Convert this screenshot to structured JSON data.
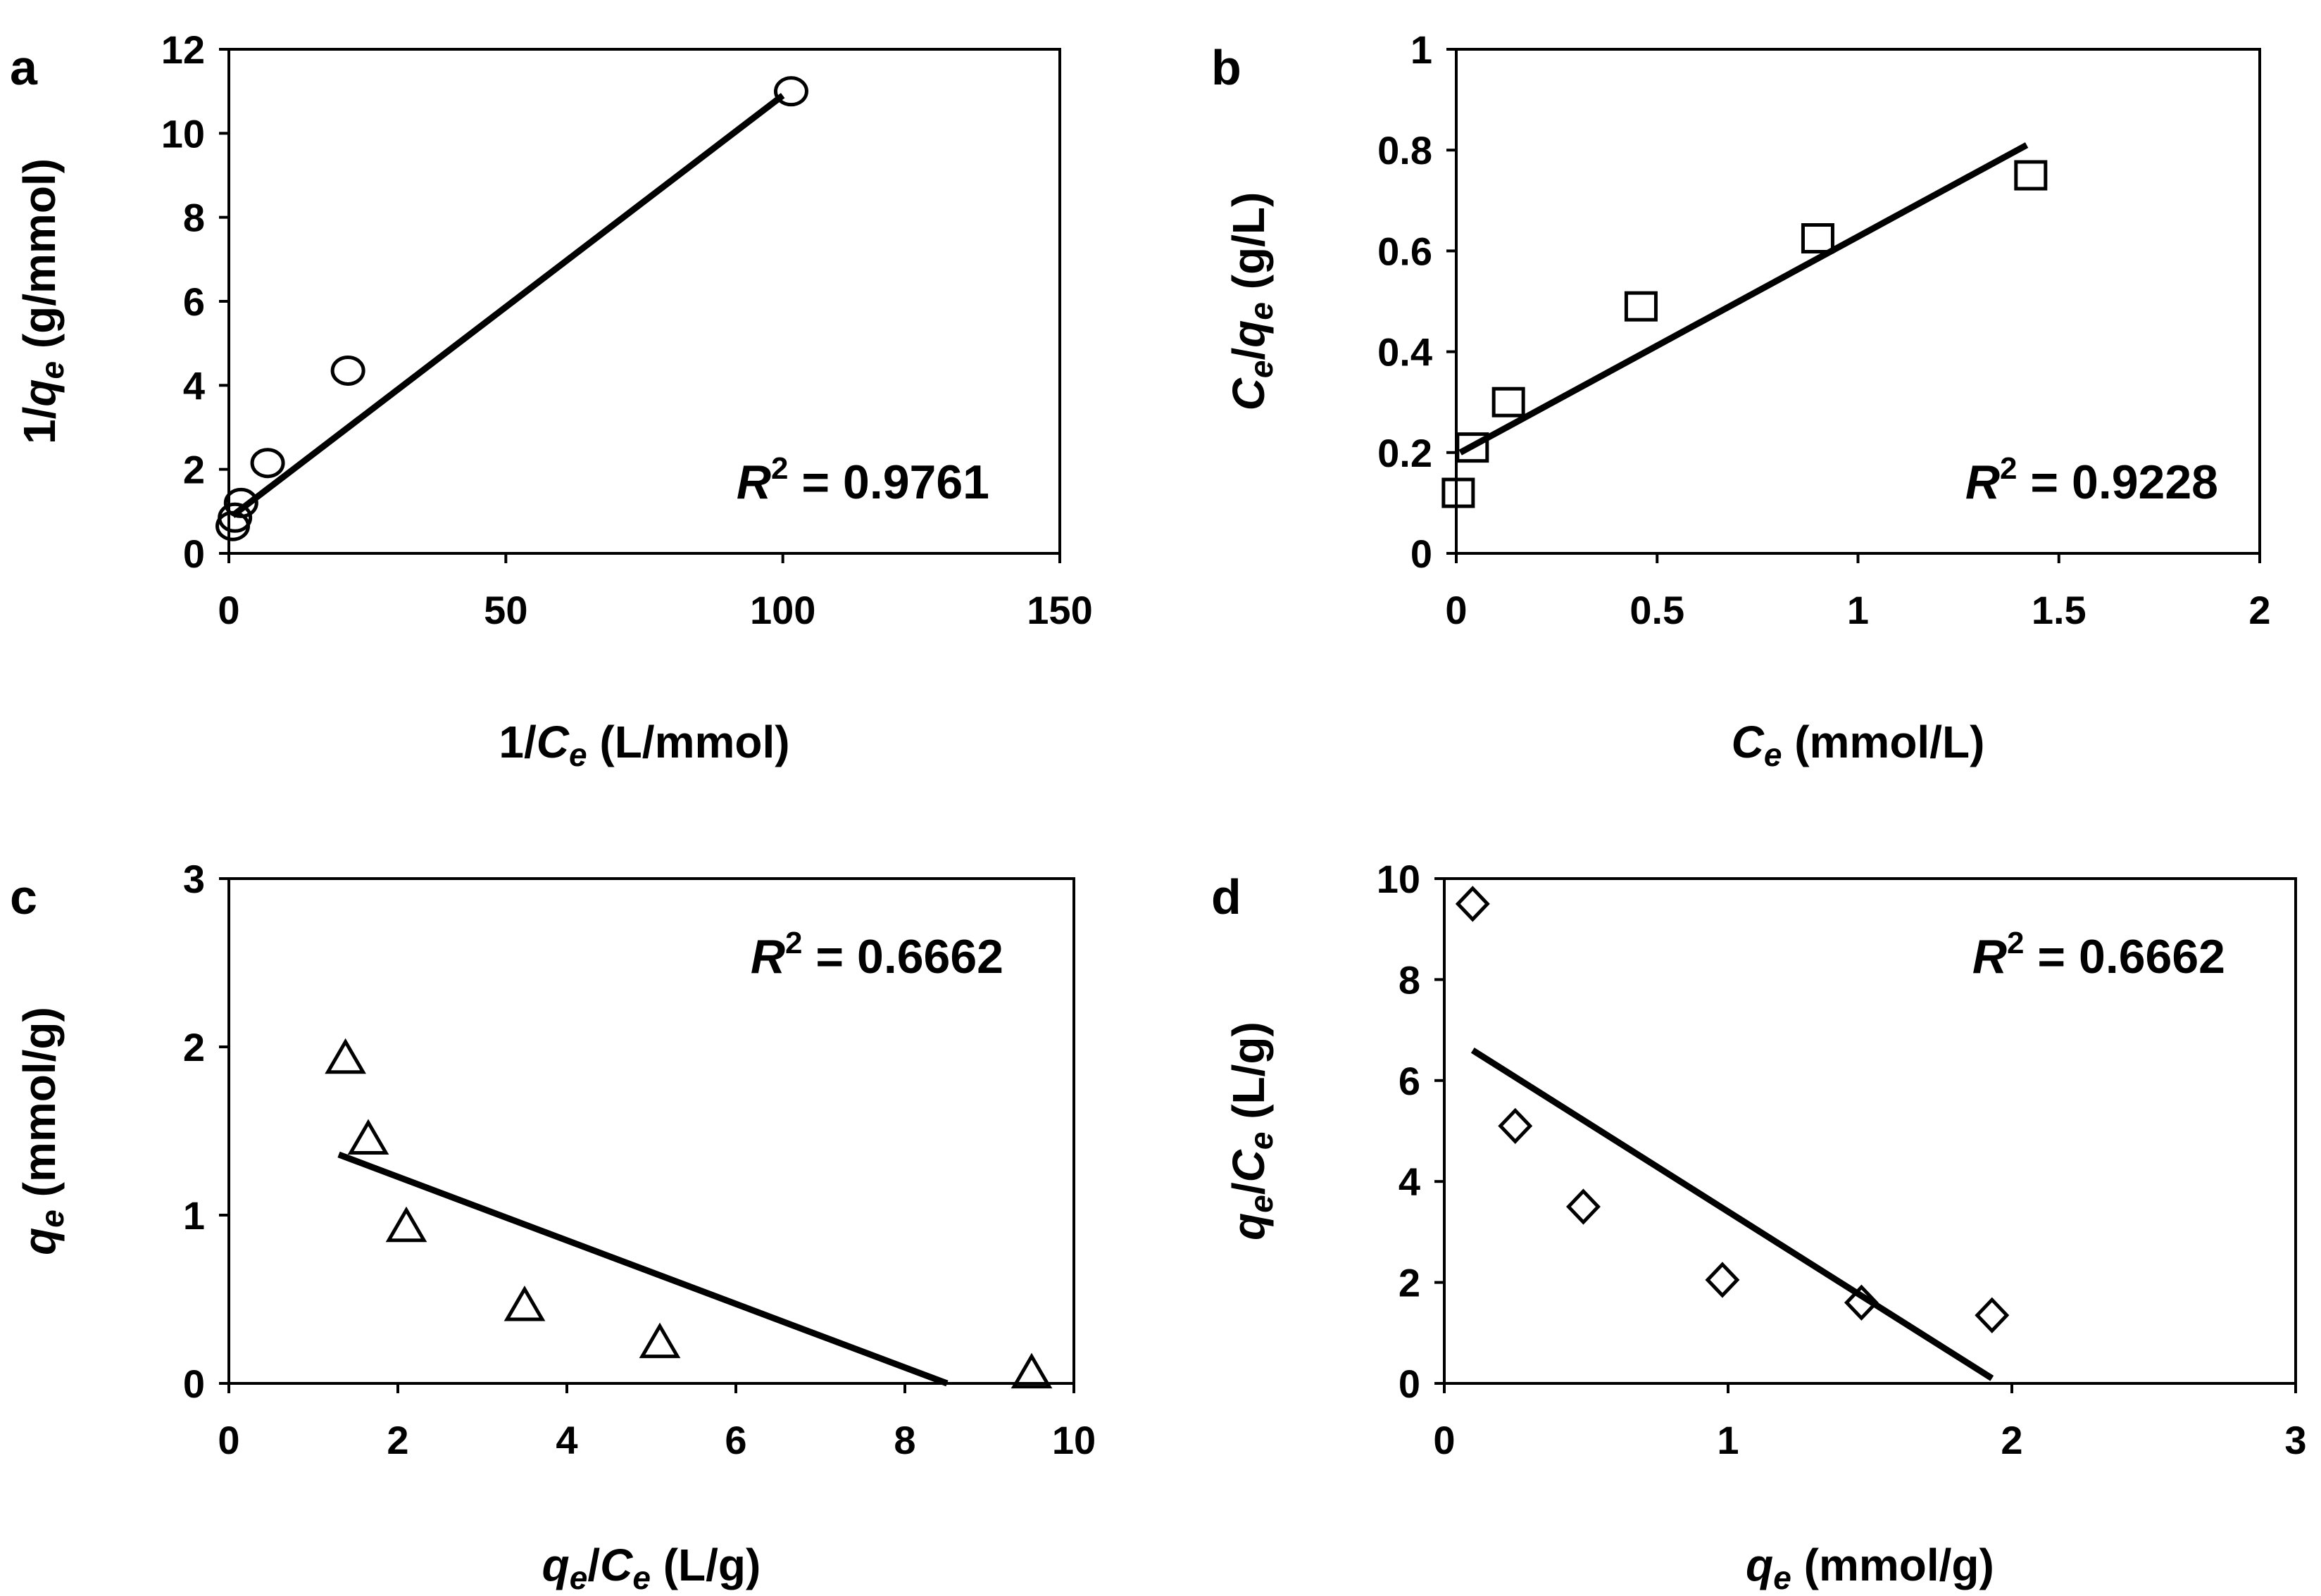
{
  "chart_data": [
    {
      "panel": "a",
      "type": "scatter",
      "marker": "circle",
      "x_ticks": [
        "0",
        "50",
        "100",
        "150"
      ],
      "y_ticks": [
        "0",
        "2",
        "4",
        "6",
        "8",
        "10",
        "12"
      ],
      "xlim": [
        0,
        150
      ],
      "ylim": [
        0,
        12
      ],
      "xlabel": {
        "pre": "1/",
        "var": "C",
        "sub": "e",
        "post": " (L/mmol)"
      },
      "ylabel": {
        "pre": "1/",
        "var": "q",
        "sub": "e",
        "post": " (g/mmol)"
      },
      "points": [
        {
          "x": 0.7,
          "y": 0.65
        },
        {
          "x": 1.1,
          "y": 0.85
        },
        {
          "x": 2.2,
          "y": 1.2
        },
        {
          "x": 7.0,
          "y": 2.15
        },
        {
          "x": 21.5,
          "y": 4.35
        },
        {
          "x": 101.5,
          "y": 11.0
        }
      ],
      "fit_line": {
        "x1": 0.7,
        "y1": 0.9,
        "x2": 100,
        "y2": 10.9
      },
      "r_squared": {
        "symbol": "R",
        "exp": "2",
        "text": " = 0.9761"
      }
    },
    {
      "panel": "b",
      "type": "scatter",
      "marker": "square",
      "x_ticks": [
        "0",
        "0.5",
        "1",
        "1.5",
        "2"
      ],
      "y_ticks": [
        "0",
        "0.2",
        "0.4",
        "0.6",
        "0.8",
        "1"
      ],
      "xlim": [
        0,
        2
      ],
      "ylim": [
        0,
        1
      ],
      "xlabel": {
        "pre": "",
        "var": "C",
        "sub": "e",
        "post": " (mmol/L)"
      },
      "ylabel": {
        "pre": "",
        "var": "C",
        "sub": "e",
        "post": "/",
        "var2": "q",
        "sub2": "e",
        "post2": " (g/L)"
      },
      "points": [
        {
          "x": 0.005,
          "y": 0.12
        },
        {
          "x": 0.04,
          "y": 0.21
        },
        {
          "x": 0.13,
          "y": 0.3
        },
        {
          "x": 0.46,
          "y": 0.49
        },
        {
          "x": 0.9,
          "y": 0.625
        },
        {
          "x": 1.43,
          "y": 0.75
        }
      ],
      "fit_line": {
        "x1": 0.01,
        "y1": 0.2,
        "x2": 1.42,
        "y2": 0.81
      },
      "r_squared": {
        "symbol": "R",
        "exp": "2",
        "text": " = 0.9228"
      }
    },
    {
      "panel": "c",
      "type": "scatter",
      "marker": "triangle",
      "x_ticks": [
        "0",
        "2",
        "4",
        "6",
        "8",
        "10"
      ],
      "y_ticks": [
        "0",
        "1",
        "2",
        "3"
      ],
      "xlim": [
        0,
        10
      ],
      "ylim": [
        0,
        3
      ],
      "xlabel": {
        "pre": "",
        "var": "q",
        "sub": "e",
        "post": "/",
        "var2": "C",
        "sub2": "e",
        "post2": " (L/g)"
      },
      "ylabel": {
        "pre": "",
        "var": "q",
        "sub": "e",
        "post": " (mmol/g)"
      },
      "points": [
        {
          "x": 1.38,
          "y": 1.93
        },
        {
          "x": 1.65,
          "y": 1.45
        },
        {
          "x": 2.1,
          "y": 0.93
        },
        {
          "x": 3.5,
          "y": 0.46
        },
        {
          "x": 5.1,
          "y": 0.24
        },
        {
          "x": 9.5,
          "y": 0.06
        }
      ],
      "fit_line": {
        "x1": 1.3,
        "y1": 1.36,
        "x2": 8.5,
        "y2": 0.0
      },
      "r_squared": {
        "symbol": "R",
        "exp": "2",
        "text": " = 0.6662"
      }
    },
    {
      "panel": "d",
      "type": "scatter",
      "marker": "diamond",
      "x_ticks": [
        "0",
        "1",
        "2",
        "3"
      ],
      "y_ticks": [
        "0",
        "2",
        "4",
        "6",
        "8",
        "10"
      ],
      "xlim": [
        0,
        3
      ],
      "ylim": [
        0,
        10
      ],
      "xlabel": {
        "pre": "",
        "var": "q",
        "sub": "e",
        "post": " (mmol/g)"
      },
      "ylabel": {
        "pre": "",
        "var": "q",
        "sub": "e",
        "post": "/",
        "var2": "C",
        "sub2": "e",
        "post2": " (L/g)"
      },
      "points": [
        {
          "x": 0.1,
          "y": 9.5
        },
        {
          "x": 0.25,
          "y": 5.1
        },
        {
          "x": 0.49,
          "y": 3.5
        },
        {
          "x": 0.98,
          "y": 2.05
        },
        {
          "x": 1.47,
          "y": 1.6
        },
        {
          "x": 1.93,
          "y": 1.35
        }
      ],
      "fit_line": {
        "x1": 0.1,
        "y1": 6.6,
        "x2": 1.93,
        "y2": 0.1
      },
      "r_squared": {
        "symbol": "R",
        "exp": "2",
        "text": " = 0.6662"
      }
    }
  ]
}
